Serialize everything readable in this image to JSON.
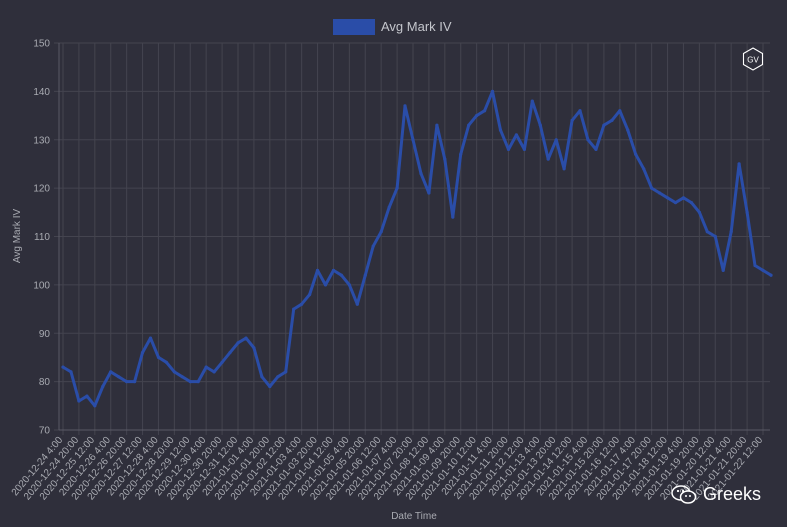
{
  "chart_data": {
    "type": "line",
    "legend": {
      "label": "Avg Mark IV",
      "position": "top-center"
    },
    "xlabel": "Date Time",
    "ylabel": "Avg Mark IV",
    "ylim": [
      70,
      150
    ],
    "yticks": [
      70,
      80,
      90,
      100,
      110,
      120,
      130,
      140,
      150
    ],
    "xtick_labels": [
      "2020-12-24 4:00",
      "2020-12-24 20:00",
      "2020-12-25 12:00",
      "2020-12-26 4:00",
      "2020-12-26 20:00",
      "2020-12-27 12:00",
      "2020-12-28 4:00",
      "2020-12-28 20:00",
      "2020-12-29 12:00",
      "2020-12-30 4:00",
      "2020-12-30 20:00",
      "2020-12-31 12:00",
      "2021-01-01 4:00",
      "2021-01-01 20:00",
      "2021-01-02 12:00",
      "2021-01-03 4:00",
      "2021-01-03 20:00",
      "2021-01-04 12:00",
      "2021-01-05 4:00",
      "2021-01-05 20:00",
      "2021-01-06 12:00",
      "2021-01-07 4:00",
      "2021-01-07 20:00",
      "2021-01-08 12:00",
      "2021-01-09 4:00",
      "2021-01-09 20:00",
      "2021-01-10 12:00",
      "2021-01-11 4:00",
      "2021-01-11 20:00",
      "2021-01-12 12:00",
      "2021-01-13 4:00",
      "2021-01-13 20:00",
      "2021-01-14 12:00",
      "2021-01-15 4:00",
      "2021-01-15 20:00",
      "2021-01-16 12:00",
      "2021-01-17 4:00",
      "2021-01-17 20:00",
      "2021-01-18 12:00",
      "2021-01-19 4:00",
      "2021-01-19 20:00",
      "2021-01-20 12:00",
      "2021-01-21 4:00",
      "2021-01-21 20:00",
      "2021-01-22 12:00"
    ],
    "grid": true,
    "series": [
      {
        "name": "Avg Mark IV",
        "color": "#2a4da8",
        "x": [
          "2020-12-24 4:00",
          "2020-12-24 12:00",
          "2020-12-24 20:00",
          "2020-12-25 4:00",
          "2020-12-25 12:00",
          "2020-12-25 20:00",
          "2020-12-26 4:00",
          "2020-12-26 12:00",
          "2020-12-26 20:00",
          "2020-12-27 4:00",
          "2020-12-27 12:00",
          "2020-12-27 20:00",
          "2020-12-28 4:00",
          "2020-12-28 12:00",
          "2020-12-28 20:00",
          "2020-12-29 4:00",
          "2020-12-29 12:00",
          "2020-12-29 20:00",
          "2020-12-30 4:00",
          "2020-12-30 12:00",
          "2020-12-30 20:00",
          "2020-12-31 4:00",
          "2020-12-31 12:00",
          "2020-12-31 20:00",
          "2021-01-01 4:00",
          "2021-01-01 12:00",
          "2021-01-01 20:00",
          "2021-01-02 4:00",
          "2021-01-02 12:00",
          "2021-01-02 20:00",
          "2021-01-03 4:00",
          "2021-01-03 12:00",
          "2021-01-03 20:00",
          "2021-01-04 4:00",
          "2021-01-04 12:00",
          "2021-01-04 20:00",
          "2021-01-05 4:00",
          "2021-01-05 12:00",
          "2021-01-05 20:00",
          "2021-01-06 4:00",
          "2021-01-06 12:00",
          "2021-01-06 20:00",
          "2021-01-07 4:00",
          "2021-01-07 12:00",
          "2021-01-07 20:00",
          "2021-01-08 4:00",
          "2021-01-08 12:00",
          "2021-01-08 20:00",
          "2021-01-09 4:00",
          "2021-01-09 12:00",
          "2021-01-09 20:00",
          "2021-01-10 4:00",
          "2021-01-10 12:00",
          "2021-01-10 20:00",
          "2021-01-11 4:00",
          "2021-01-11 12:00",
          "2021-01-11 20:00",
          "2021-01-12 4:00",
          "2021-01-12 12:00",
          "2021-01-12 20:00",
          "2021-01-13 4:00",
          "2021-01-13 12:00",
          "2021-01-13 20:00",
          "2021-01-14 4:00",
          "2021-01-14 12:00",
          "2021-01-14 20:00",
          "2021-01-15 4:00",
          "2021-01-15 12:00",
          "2021-01-15 20:00",
          "2021-01-16 4:00",
          "2021-01-16 12:00",
          "2021-01-16 20:00",
          "2021-01-17 4:00",
          "2021-01-17 12:00",
          "2021-01-17 20:00",
          "2021-01-18 4:00",
          "2021-01-18 12:00",
          "2021-01-18 20:00",
          "2021-01-19 4:00",
          "2021-01-19 12:00",
          "2021-01-19 20:00",
          "2021-01-20 4:00",
          "2021-01-20 12:00",
          "2021-01-20 20:00",
          "2021-01-21 4:00",
          "2021-01-21 12:00",
          "2021-01-21 20:00",
          "2021-01-22 4:00",
          "2021-01-22 12:00",
          "2021-01-22 20:00"
        ],
        "values": [
          83,
          82,
          76,
          77,
          75,
          79,
          82,
          81,
          80,
          80,
          86,
          89,
          85,
          84,
          82,
          81,
          80,
          80,
          83,
          82,
          84,
          86,
          88,
          89,
          87,
          81,
          79,
          81,
          82,
          95,
          96,
          98,
          103,
          100,
          103,
          102,
          100,
          96,
          102,
          108,
          111,
          116,
          120,
          137,
          130,
          123,
          119,
          133,
          126,
          114,
          127,
          133,
          135,
          136,
          140,
          132,
          128,
          131,
          128,
          138,
          133,
          126,
          130,
          124,
          134,
          136,
          130,
          128,
          133,
          134,
          136,
          132,
          127,
          124,
          120,
          119,
          118,
          117,
          118,
          117,
          115,
          111,
          110,
          103,
          111,
          125,
          115,
          104,
          103,
          102
        ]
      }
    ]
  },
  "watermark": {
    "badge": "GV",
    "text": "Greeks"
  }
}
